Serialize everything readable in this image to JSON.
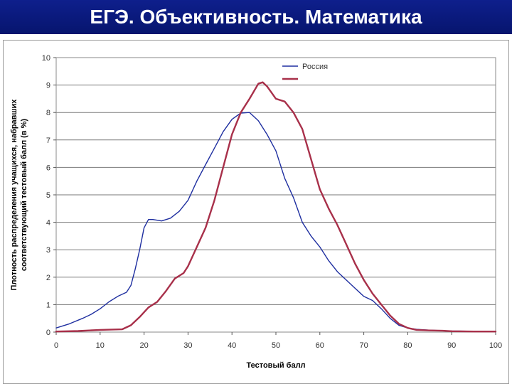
{
  "slide": {
    "title": "ЕГЭ. Объективность. Математика"
  },
  "chart_data": {
    "type": "line",
    "title": "",
    "xlabel": "Тестовый балл",
    "ylabel_lines": [
      "Плотность распределения учащихся, набравших",
      "соответствующий тестовый балл (в %)"
    ],
    "xlim": [
      0,
      100
    ],
    "ylim": [
      0,
      10
    ],
    "x_ticks": [
      0,
      10,
      20,
      30,
      40,
      50,
      60,
      70,
      80,
      90,
      100
    ],
    "y_ticks": [
      0,
      1,
      2,
      3,
      4,
      5,
      6,
      7,
      8,
      9,
      10
    ],
    "grid": "horizontal",
    "legend_position": "top-right",
    "series": [
      {
        "name": "Россия",
        "color": "#1f2fa0",
        "points": [
          [
            0,
            0.15
          ],
          [
            3,
            0.3
          ],
          [
            6,
            0.5
          ],
          [
            8,
            0.65
          ],
          [
            10,
            0.85
          ],
          [
            12,
            1.1
          ],
          [
            14,
            1.3
          ],
          [
            16,
            1.45
          ],
          [
            17,
            1.7
          ],
          [
            18,
            2.3
          ],
          [
            19,
            3.0
          ],
          [
            20,
            3.8
          ],
          [
            21,
            4.1
          ],
          [
            22,
            4.1
          ],
          [
            24,
            4.05
          ],
          [
            26,
            4.15
          ],
          [
            28,
            4.4
          ],
          [
            30,
            4.8
          ],
          [
            32,
            5.5
          ],
          [
            34,
            6.1
          ],
          [
            36,
            6.7
          ],
          [
            38,
            7.3
          ],
          [
            40,
            7.75
          ],
          [
            42,
            7.98
          ],
          [
            44,
            8.0
          ],
          [
            46,
            7.7
          ],
          [
            48,
            7.2
          ],
          [
            50,
            6.6
          ],
          [
            52,
            5.6
          ],
          [
            54,
            4.9
          ],
          [
            56,
            4.0
          ],
          [
            58,
            3.5
          ],
          [
            60,
            3.1
          ],
          [
            62,
            2.6
          ],
          [
            64,
            2.2
          ],
          [
            66,
            1.9
          ],
          [
            68,
            1.6
          ],
          [
            70,
            1.3
          ],
          [
            72,
            1.15
          ],
          [
            74,
            0.85
          ],
          [
            76,
            0.5
          ],
          [
            78,
            0.25
          ],
          [
            80,
            0.15
          ],
          [
            82,
            0.1
          ],
          [
            85,
            0.07
          ],
          [
            90,
            0.04
          ],
          [
            95,
            0.03
          ],
          [
            100,
            0.03
          ]
        ]
      },
      {
        "name": "",
        "color": "#a8304a",
        "points": [
          [
            0,
            0.02
          ],
          [
            5,
            0.04
          ],
          [
            10,
            0.08
          ],
          [
            15,
            0.1
          ],
          [
            17,
            0.25
          ],
          [
            19,
            0.55
          ],
          [
            21,
            0.9
          ],
          [
            23,
            1.1
          ],
          [
            25,
            1.5
          ],
          [
            27,
            1.95
          ],
          [
            29,
            2.15
          ],
          [
            30,
            2.4
          ],
          [
            32,
            3.1
          ],
          [
            34,
            3.8
          ],
          [
            36,
            4.8
          ],
          [
            38,
            6.0
          ],
          [
            40,
            7.2
          ],
          [
            42,
            8.0
          ],
          [
            44,
            8.5
          ],
          [
            46,
            9.05
          ],
          [
            47,
            9.1
          ],
          [
            48,
            8.95
          ],
          [
            50,
            8.5
          ],
          [
            52,
            8.4
          ],
          [
            54,
            8.0
          ],
          [
            56,
            7.4
          ],
          [
            58,
            6.3
          ],
          [
            60,
            5.2
          ],
          [
            62,
            4.5
          ],
          [
            64,
            3.9
          ],
          [
            66,
            3.2
          ],
          [
            68,
            2.5
          ],
          [
            70,
            1.9
          ],
          [
            72,
            1.4
          ],
          [
            74,
            1.0
          ],
          [
            76,
            0.6
          ],
          [
            78,
            0.3
          ],
          [
            80,
            0.15
          ],
          [
            82,
            0.08
          ],
          [
            85,
            0.06
          ],
          [
            88,
            0.05
          ],
          [
            90,
            0.03
          ],
          [
            95,
            0.02
          ],
          [
            100,
            0.02
          ]
        ]
      }
    ]
  }
}
